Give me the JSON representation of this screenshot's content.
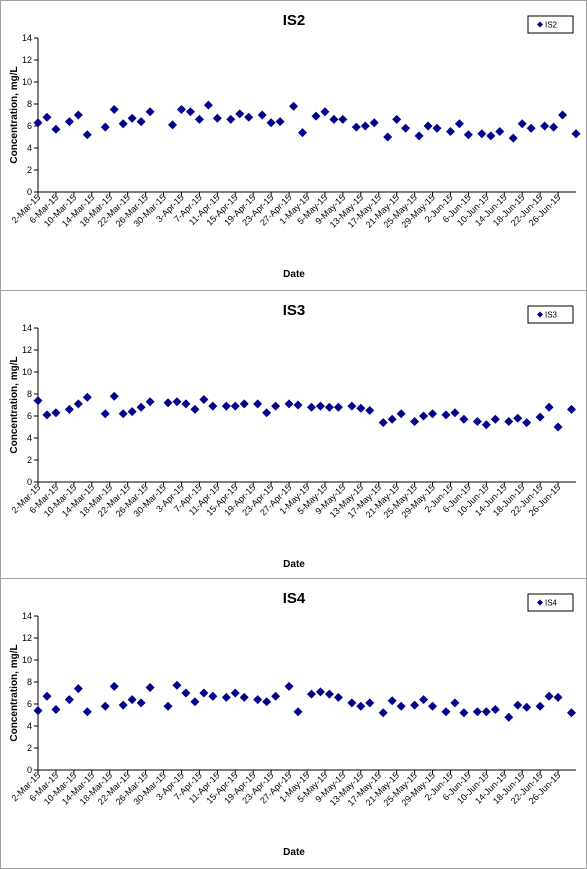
{
  "chart_data": [
    {
      "type": "scatter",
      "title": "IS2",
      "xlabel": "Date",
      "ylabel": "Concentration, mg/L",
      "ylim": [
        0,
        14
      ],
      "yticks": [
        0,
        2,
        4,
        6,
        8,
        10,
        12,
        14
      ],
      "xticks": [
        "2-Mar-15",
        "6-Mar-15",
        "10-Mar-15",
        "14-Mar-15",
        "18-Mar-15",
        "22-Mar-15",
        "26-Mar-15",
        "30-Mar-15",
        "3-Apr-15",
        "7-Apr-15",
        "11-Apr-15",
        "15-Apr-15",
        "19-Apr-15",
        "23-Apr-15",
        "27-Apr-15",
        "1-May-15",
        "5-May-15",
        "9-May-15",
        "13-May-15",
        "17-May-15",
        "21-May-15",
        "25-May-15",
        "29-May-15",
        "2-Jun-15",
        "6-Jun-15",
        "10-Jun-15",
        "14-Jun-15",
        "18-Jun-15",
        "22-Jun-15",
        "26-Jun-15"
      ],
      "legend_position": "top-right",
      "color": "#00008b",
      "series": [
        {
          "name": "IS2",
          "points": [
            [
              "2-Mar-15",
              6.3
            ],
            [
              "4-Mar-15",
              6.8
            ],
            [
              "6-Mar-15",
              5.7
            ],
            [
              "9-Mar-15",
              6.4
            ],
            [
              "11-Mar-15",
              7.0
            ],
            [
              "13-Mar-15",
              5.2
            ],
            [
              "17-Mar-15",
              5.9
            ],
            [
              "19-Mar-15",
              7.5
            ],
            [
              "21-Mar-15",
              6.2
            ],
            [
              "23-Mar-15",
              6.7
            ],
            [
              "25-Mar-15",
              6.4
            ],
            [
              "27-Mar-15",
              7.3
            ],
            [
              "1-Apr-15",
              6.1
            ],
            [
              "3-Apr-15",
              7.5
            ],
            [
              "5-Apr-15",
              7.3
            ],
            [
              "7-Apr-15",
              6.6
            ],
            [
              "9-Apr-15",
              7.9
            ],
            [
              "11-Apr-15",
              6.7
            ],
            [
              "14-Apr-15",
              6.6
            ],
            [
              "16-Apr-15",
              7.1
            ],
            [
              "18-Apr-15",
              6.8
            ],
            [
              "21-Apr-15",
              7.0
            ],
            [
              "23-Apr-15",
              6.3
            ],
            [
              "25-Apr-15",
              6.4
            ],
            [
              "28-Apr-15",
              7.8
            ],
            [
              "30-Apr-15",
              5.4
            ],
            [
              "3-May-15",
              6.9
            ],
            [
              "5-May-15",
              7.3
            ],
            [
              "7-May-15",
              6.6
            ],
            [
              "9-May-15",
              6.6
            ],
            [
              "12-May-15",
              5.9
            ],
            [
              "14-May-15",
              6.0
            ],
            [
              "16-May-15",
              6.3
            ],
            [
              "19-May-15",
              5.0
            ],
            [
              "21-May-15",
              6.6
            ],
            [
              "23-May-15",
              5.8
            ],
            [
              "26-May-15",
              5.1
            ],
            [
              "28-May-15",
              6.0
            ],
            [
              "30-May-15",
              5.8
            ],
            [
              "2-Jun-15",
              5.5
            ],
            [
              "4-Jun-15",
              6.2
            ],
            [
              "6-Jun-15",
              5.2
            ],
            [
              "9-Jun-15",
              5.3
            ],
            [
              "11-Jun-15",
              5.1
            ],
            [
              "13-Jun-15",
              5.5
            ],
            [
              "16-Jun-15",
              4.9
            ],
            [
              "18-Jun-15",
              6.2
            ],
            [
              "20-Jun-15",
              5.8
            ],
            [
              "23-Jun-15",
              6.0
            ],
            [
              "25-Jun-15",
              5.9
            ],
            [
              "27-Jun-15",
              7.0
            ],
            [
              "30-Jun-15",
              5.3
            ]
          ]
        }
      ]
    },
    {
      "type": "scatter",
      "title": "IS3",
      "xlabel": "Date",
      "ylabel": "Concentration, mg/L",
      "ylim": [
        0,
        14
      ],
      "yticks": [
        0,
        2,
        4,
        6,
        8,
        10,
        12,
        14
      ],
      "xticks": [
        "2-Mar-15",
        "6-Mar-15",
        "10-Mar-15",
        "14-Mar-15",
        "18-Mar-15",
        "22-Mar-15",
        "26-Mar-15",
        "30-Mar-15",
        "3-Apr-15",
        "7-Apr-15",
        "11-Apr-15",
        "15-Apr-15",
        "19-Apr-15",
        "23-Apr-15",
        "27-Apr-15",
        "1-May-15",
        "5-May-15",
        "9-May-15",
        "13-May-15",
        "17-May-15",
        "21-May-15",
        "25-May-15",
        "29-May-15",
        "2-Jun-15",
        "6-Jun-15",
        "10-Jun-15",
        "14-Jun-15",
        "18-Jun-15",
        "22-Jun-15",
        "26-Jun-15"
      ],
      "legend_position": "top-right",
      "color": "#00008b",
      "series": [
        {
          "name": "IS3",
          "points": [
            [
              "2-Mar-15",
              7.4
            ],
            [
              "4-Mar-15",
              6.1
            ],
            [
              "6-Mar-15",
              6.3
            ],
            [
              "9-Mar-15",
              6.6
            ],
            [
              "11-Mar-15",
              7.1
            ],
            [
              "13-Mar-15",
              7.7
            ],
            [
              "17-Mar-15",
              6.2
            ],
            [
              "19-Mar-15",
              7.8
            ],
            [
              "21-Mar-15",
              6.2
            ],
            [
              "23-Mar-15",
              6.4
            ],
            [
              "25-Mar-15",
              6.8
            ],
            [
              "27-Mar-15",
              7.3
            ],
            [
              "31-Mar-15",
              7.2
            ],
            [
              "2-Apr-15",
              7.3
            ],
            [
              "4-Apr-15",
              7.1
            ],
            [
              "6-Apr-15",
              6.6
            ],
            [
              "8-Apr-15",
              7.5
            ],
            [
              "10-Apr-15",
              6.9
            ],
            [
              "13-Apr-15",
              6.9
            ],
            [
              "15-Apr-15",
              6.9
            ],
            [
              "17-Apr-15",
              7.1
            ],
            [
              "20-Apr-15",
              7.1
            ],
            [
              "22-Apr-15",
              6.3
            ],
            [
              "24-Apr-15",
              6.9
            ],
            [
              "27-Apr-15",
              7.1
            ],
            [
              "29-Apr-15",
              7.0
            ],
            [
              "2-May-15",
              6.8
            ],
            [
              "4-May-15",
              6.9
            ],
            [
              "6-May-15",
              6.8
            ],
            [
              "8-May-15",
              6.8
            ],
            [
              "11-May-15",
              6.9
            ],
            [
              "13-May-15",
              6.7
            ],
            [
              "15-May-15",
              6.5
            ],
            [
              "18-May-15",
              5.4
            ],
            [
              "20-May-15",
              5.7
            ],
            [
              "22-May-15",
              6.2
            ],
            [
              "25-May-15",
              5.5
            ],
            [
              "27-May-15",
              6.0
            ],
            [
              "29-May-15",
              6.2
            ],
            [
              "1-Jun-15",
              6.1
            ],
            [
              "3-Jun-15",
              6.3
            ],
            [
              "5-Jun-15",
              5.7
            ],
            [
              "8-Jun-15",
              5.5
            ],
            [
              "10-Jun-15",
              5.2
            ],
            [
              "12-Jun-15",
              5.7
            ],
            [
              "15-Jun-15",
              5.5
            ],
            [
              "17-Jun-15",
              5.8
            ],
            [
              "19-Jun-15",
              5.4
            ],
            [
              "22-Jun-15",
              5.9
            ],
            [
              "24-Jun-15",
              6.8
            ],
            [
              "26-Jun-15",
              5.0
            ],
            [
              "29-Jun-15",
              6.6
            ]
          ]
        }
      ]
    },
    {
      "type": "scatter",
      "title": "IS4",
      "xlabel": "Date",
      "ylabel": "Concentration, mg/L",
      "ylim": [
        0,
        14
      ],
      "yticks": [
        0,
        2,
        4,
        6,
        8,
        10,
        12,
        14
      ],
      "xticks": [
        "2-Mar-15",
        "6-Mar-15",
        "10-Mar-15",
        "14-Mar-15",
        "18-Mar-15",
        "22-Mar-15",
        "26-Mar-15",
        "30-Mar-15",
        "3-Apr-15",
        "7-Apr-15",
        "11-Apr-15",
        "15-Apr-15",
        "19-Apr-15",
        "23-Apr-15",
        "27-Apr-15",
        "1-May-15",
        "5-May-15",
        "9-May-15",
        "13-May-15",
        "17-May-15",
        "21-May-15",
        "25-May-15",
        "29-May-15",
        "2-Jun-15",
        "6-Jun-15",
        "10-Jun-15",
        "14-Jun-15",
        "18-Jun-15",
        "22-Jun-15",
        "26-Jun-15"
      ],
      "legend_position": "top-right",
      "color": "#00008b",
      "series": [
        {
          "name": "IS4",
          "points": [
            [
              "2-Mar-15",
              5.4
            ],
            [
              "4-Mar-15",
              6.7
            ],
            [
              "6-Mar-15",
              5.5
            ],
            [
              "9-Mar-15",
              6.4
            ],
            [
              "11-Mar-15",
              7.4
            ],
            [
              "13-Mar-15",
              5.3
            ],
            [
              "17-Mar-15",
              5.8
            ],
            [
              "19-Mar-15",
              7.6
            ],
            [
              "21-Mar-15",
              5.9
            ],
            [
              "23-Mar-15",
              6.4
            ],
            [
              "25-Mar-15",
              6.1
            ],
            [
              "27-Mar-15",
              7.5
            ],
            [
              "31-Mar-15",
              5.8
            ],
            [
              "2-Apr-15",
              7.7
            ],
            [
              "4-Apr-15",
              7.0
            ],
            [
              "6-Apr-15",
              6.2
            ],
            [
              "8-Apr-15",
              7.0
            ],
            [
              "10-Apr-15",
              6.7
            ],
            [
              "13-Apr-15",
              6.6
            ],
            [
              "15-Apr-15",
              7.0
            ],
            [
              "17-Apr-15",
              6.6
            ],
            [
              "20-Apr-15",
              6.4
            ],
            [
              "22-Apr-15",
              6.2
            ],
            [
              "24-Apr-15",
              6.7
            ],
            [
              "27-Apr-15",
              7.6
            ],
            [
              "29-Apr-15",
              5.3
            ],
            [
              "2-May-15",
              6.9
            ],
            [
              "4-May-15",
              7.1
            ],
            [
              "6-May-15",
              6.9
            ],
            [
              "8-May-15",
              6.6
            ],
            [
              "11-May-15",
              6.1
            ],
            [
              "13-May-15",
              5.8
            ],
            [
              "15-May-15",
              6.1
            ],
            [
              "18-May-15",
              5.2
            ],
            [
              "20-May-15",
              6.3
            ],
            [
              "22-May-15",
              5.8
            ],
            [
              "25-May-15",
              5.9
            ],
            [
              "27-May-15",
              6.4
            ],
            [
              "29-May-15",
              5.8
            ],
            [
              "1-Jun-15",
              5.3
            ],
            [
              "3-Jun-15",
              6.1
            ],
            [
              "5-Jun-15",
              5.2
            ],
            [
              "8-Jun-15",
              5.3
            ],
            [
              "10-Jun-15",
              5.3
            ],
            [
              "12-Jun-15",
              5.5
            ],
            [
              "15-Jun-15",
              4.8
            ],
            [
              "17-Jun-15",
              5.9
            ],
            [
              "19-Jun-15",
              5.7
            ],
            [
              "22-Jun-15",
              5.8
            ],
            [
              "24-Jun-15",
              6.7
            ],
            [
              "26-Jun-15",
              6.6
            ],
            [
              "29-Jun-15",
              5.2
            ]
          ]
        }
      ]
    }
  ]
}
